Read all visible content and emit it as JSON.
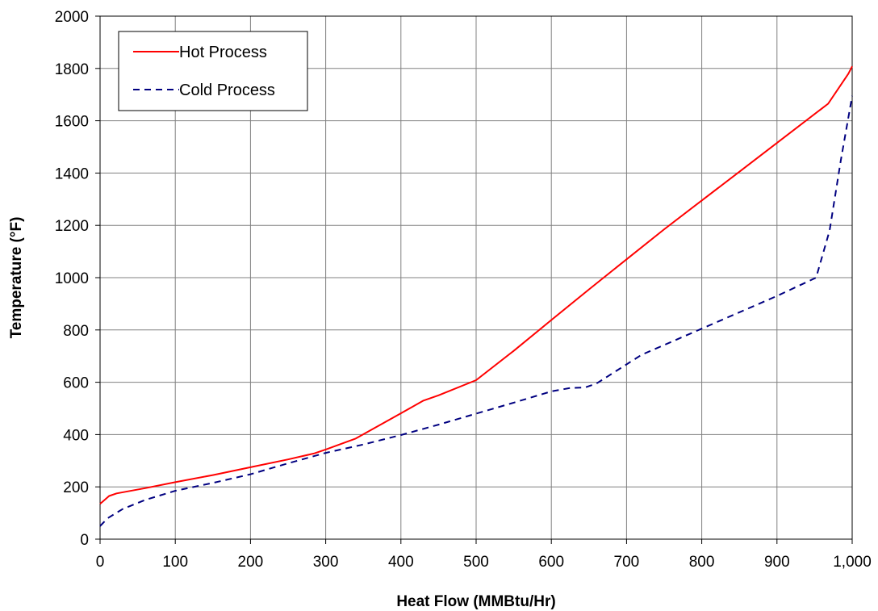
{
  "chart_data": {
    "type": "line",
    "xlabel": "Heat Flow (MMBtu/Hr)",
    "ylabel": "Temperature (°F)",
    "xlim": [
      0,
      1000
    ],
    "ylim": [
      0,
      2000
    ],
    "x_ticks": [
      {
        "value": 0,
        "label": "0"
      },
      {
        "value": 100,
        "label": "100"
      },
      {
        "value": 200,
        "label": "200"
      },
      {
        "value": 300,
        "label": "300"
      },
      {
        "value": 400,
        "label": "400"
      },
      {
        "value": 500,
        "label": "500"
      },
      {
        "value": 600,
        "label": "600"
      },
      {
        "value": 700,
        "label": "700"
      },
      {
        "value": 800,
        "label": "800"
      },
      {
        "value": 900,
        "label": "900"
      },
      {
        "value": 1000,
        "label": "1,000"
      }
    ],
    "y_ticks": [
      {
        "value": 0,
        "label": "0"
      },
      {
        "value": 200,
        "label": "200"
      },
      {
        "value": 400,
        "label": "400"
      },
      {
        "value": 600,
        "label": "600"
      },
      {
        "value": 800,
        "label": "800"
      },
      {
        "value": 1000,
        "label": "1000"
      },
      {
        "value": 1200,
        "label": "1200"
      },
      {
        "value": 1400,
        "label": "1400"
      },
      {
        "value": 1600,
        "label": "1600"
      },
      {
        "value": 1800,
        "label": "1800"
      },
      {
        "value": 2000,
        "label": "2000"
      }
    ],
    "grid": true,
    "legend_position": "top-left",
    "series": [
      {
        "name": "Hot Process",
        "color": "#ff0000",
        "dash": "solid",
        "points": [
          [
            0,
            135
          ],
          [
            12,
            165
          ],
          [
            22,
            175
          ],
          [
            60,
            195
          ],
          [
            100,
            218
          ],
          [
            150,
            245
          ],
          [
            200,
            275
          ],
          [
            250,
            305
          ],
          [
            285,
            328
          ],
          [
            300,
            343
          ],
          [
            340,
            385
          ],
          [
            390,
            465
          ],
          [
            430,
            530
          ],
          [
            450,
            550
          ],
          [
            500,
            608
          ],
          [
            550,
            720
          ],
          [
            600,
            838
          ],
          [
            650,
            955
          ],
          [
            700,
            1070
          ],
          [
            750,
            1185
          ],
          [
            800,
            1295
          ],
          [
            850,
            1405
          ],
          [
            900,
            1515
          ],
          [
            968,
            1665
          ],
          [
            995,
            1780
          ],
          [
            1000,
            1808
          ]
        ]
      },
      {
        "name": "Cold Process",
        "color": "#000080",
        "dash": "dashed",
        "points": [
          [
            0,
            50
          ],
          [
            10,
            80
          ],
          [
            30,
            115
          ],
          [
            60,
            150
          ],
          [
            100,
            185
          ],
          [
            150,
            215
          ],
          [
            200,
            248
          ],
          [
            250,
            290
          ],
          [
            300,
            330
          ],
          [
            350,
            362
          ],
          [
            400,
            398
          ],
          [
            450,
            438
          ],
          [
            500,
            480
          ],
          [
            550,
            522
          ],
          [
            600,
            565
          ],
          [
            625,
            578
          ],
          [
            645,
            580
          ],
          [
            660,
            595
          ],
          [
            720,
            705
          ],
          [
            800,
            805
          ],
          [
            900,
            930
          ],
          [
            952,
            1000
          ],
          [
            970,
            1180
          ],
          [
            985,
            1450
          ],
          [
            1000,
            1695
          ]
        ]
      }
    ]
  }
}
